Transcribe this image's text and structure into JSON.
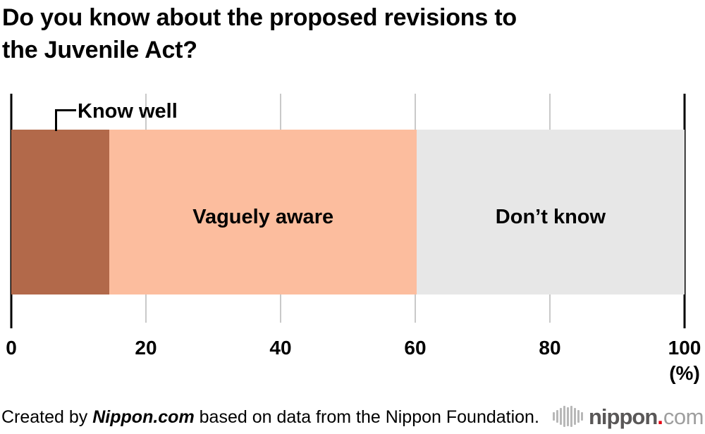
{
  "title": {
    "full": "Do you know about the proposed revisions to the Juvenile Act?",
    "line1": "Do you know about the proposed revisions to",
    "line2": "the Juvenile Act?"
  },
  "chart_data": {
    "type": "bar",
    "subtype": "horizontal-stacked-percentage",
    "title": "Do you know about the proposed revisions to the Juvenile Act?",
    "categories": [
      "Know well",
      "Vaguely aware",
      "Don't know"
    ],
    "values": [
      14.6,
      45.6,
      39.8
    ],
    "colors": [
      "#b2694a",
      "#fcbd9e",
      "#e7e7e7"
    ],
    "unit": "(%)",
    "xlim": [
      0,
      100
    ],
    "ticks": [
      0,
      20,
      40,
      60,
      80,
      100
    ],
    "grid": true,
    "legend": "none",
    "label_placement": "first segment labeled by callout above bar; others inside segments"
  },
  "labels": {
    "know_well": "Know well",
    "vaguely_aware": "Vaguely aware",
    "dont_know": "Don’t know",
    "unit": "(%)"
  },
  "footer": {
    "credit_prefix": "Created by ",
    "credit_source": "Nippon.com",
    "credit_suffix": " based on data from the Nippon Foundation.",
    "logo_name": "nippon",
    "logo_dot": ".",
    "logo_tld": "com",
    "logo_colors": {
      "name": "#595757",
      "dot": "#e60012",
      "tld": "#9e9e9e",
      "bars": "#b8b8b8"
    }
  }
}
